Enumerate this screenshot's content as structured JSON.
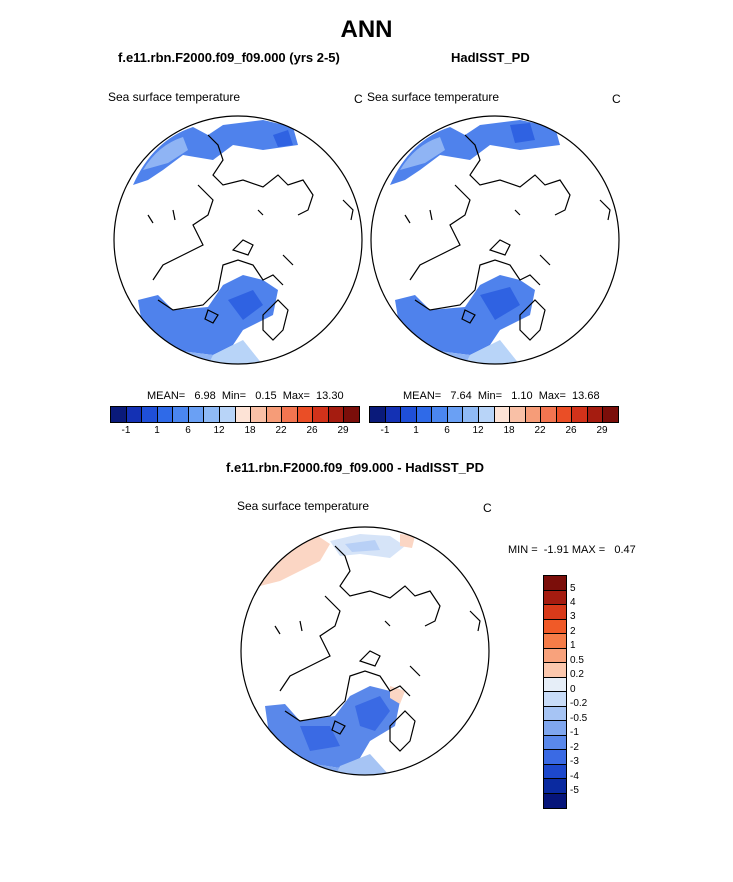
{
  "title": "ANN",
  "panels": [
    {
      "case_title": "f.e11.rbn.F2000.f09_f09.000 (yrs 2-5)",
      "variable": "Sea surface temperature",
      "unit": "C",
      "stats": "MEAN=   6.98  Min=   0.15  Max=  13.30"
    },
    {
      "case_title": "HadISST_PD",
      "variable": "Sea surface temperature",
      "unit": "C",
      "stats": "MEAN=   7.64  Min=   1.10  Max=  13.68"
    },
    {
      "case_title": "f.e11.rbn.F2000.f09_f09.000 - HadISST_PD",
      "variable": "Sea surface temperature",
      "unit": "C",
      "stats": "MIN =  -1.91 MAX =   0.47"
    }
  ],
  "abs_colorbar": {
    "colors": [
      "#0a1a7a",
      "#1431b4",
      "#1f4fd8",
      "#2f6ae8",
      "#4a86f0",
      "#6aa0f4",
      "#8fbaf6",
      "#b8d4f8",
      "#fde3d6",
      "#f9c0a6",
      "#f69c78",
      "#f37550",
      "#ea4e26",
      "#d2321a",
      "#a51c10",
      "#7b0e0a"
    ],
    "ticks": [
      "-1",
      "1",
      "6",
      "12",
      "18",
      "22",
      "26",
      "29"
    ]
  },
  "diff_colorbar": {
    "colors": [
      "#7b0e0a",
      "#a51c10",
      "#d83a1a",
      "#f05a28",
      "#f57c48",
      "#f8a27c",
      "#fbc7ad",
      "#e6eef8",
      "#c8dcf8",
      "#a6c4f4",
      "#7fa6ee",
      "#5a88ea",
      "#3a6ae4",
      "#1d48cc",
      "#0a2aa0",
      "#06157a"
    ],
    "ticks": [
      "5",
      "4",
      "3",
      "2",
      "1",
      "0.5",
      "0.2",
      "0",
      "-0.2",
      "-0.5",
      "-1",
      "-2",
      "-3",
      "-4",
      "-5"
    ]
  }
}
